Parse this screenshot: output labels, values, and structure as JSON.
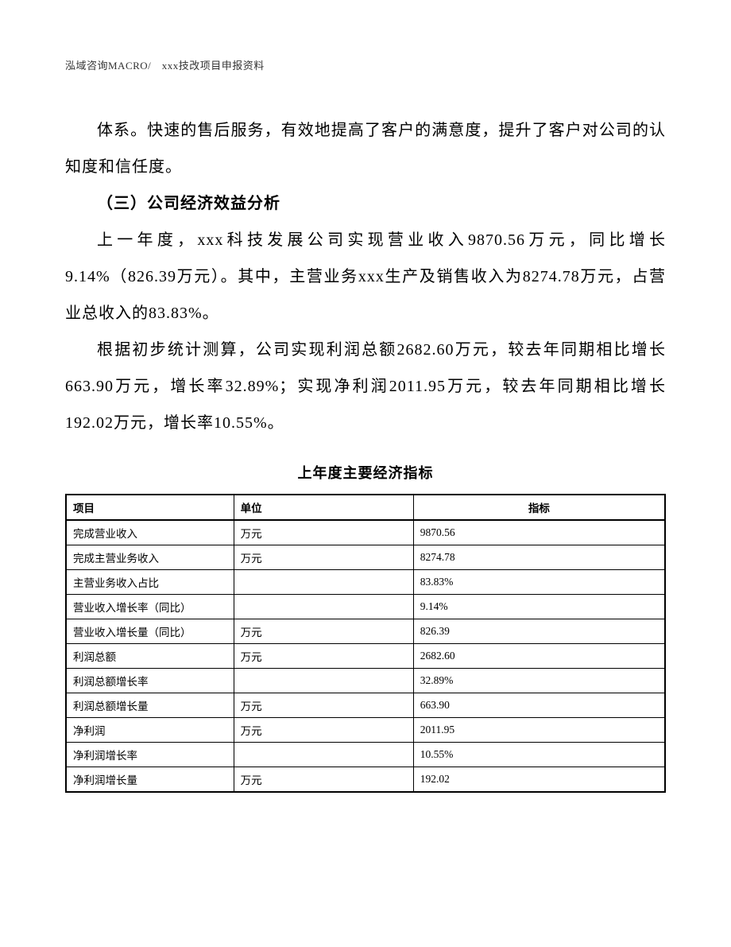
{
  "header": {
    "text": "泓域咨询MACRO/　xxx技改项目申报资料"
  },
  "paragraphs": {
    "p1": "体系。快速的售后服务，有效地提高了客户的满意度，提升了客户对公司的认知度和信任度。",
    "heading": "（三）公司经济效益分析",
    "p2": "上一年度，xxx科技发展公司实现营业收入9870.56万元，同比增长9.14%（826.39万元）。其中，主营业务xxx生产及销售收入为8274.78万元，占营业总收入的83.83%。",
    "p3": "根据初步统计测算，公司实现利润总额2682.60万元，较去年同期相比增长663.90万元，增长率32.89%；实现净利润2011.95万元，较去年同期相比增长192.02万元，增长率10.55%。"
  },
  "table": {
    "title": "上年度主要经济指标",
    "columns": {
      "item": "项目",
      "unit": "单位",
      "value": "指标"
    },
    "rows": [
      {
        "item": "完成营业收入",
        "unit": "万元",
        "value": "9870.56"
      },
      {
        "item": "完成主营业务收入",
        "unit": "万元",
        "value": "8274.78"
      },
      {
        "item": "主营业务收入占比",
        "unit": "",
        "value": "83.83%"
      },
      {
        "item": "营业收入增长率（同比）",
        "unit": "",
        "value": "9.14%"
      },
      {
        "item": "营业收入增长量（同比）",
        "unit": "万元",
        "value": "826.39"
      },
      {
        "item": "利润总额",
        "unit": "万元",
        "value": "2682.60"
      },
      {
        "item": "利润总额增长率",
        "unit": "",
        "value": "32.89%"
      },
      {
        "item": "利润总额增长量",
        "unit": "万元",
        "value": "663.90"
      },
      {
        "item": "净利润",
        "unit": "万元",
        "value": "2011.95"
      },
      {
        "item": "净利润增长率",
        "unit": "",
        "value": "10.55%"
      },
      {
        "item": "净利润增长量",
        "unit": "万元",
        "value": "192.02"
      }
    ]
  }
}
